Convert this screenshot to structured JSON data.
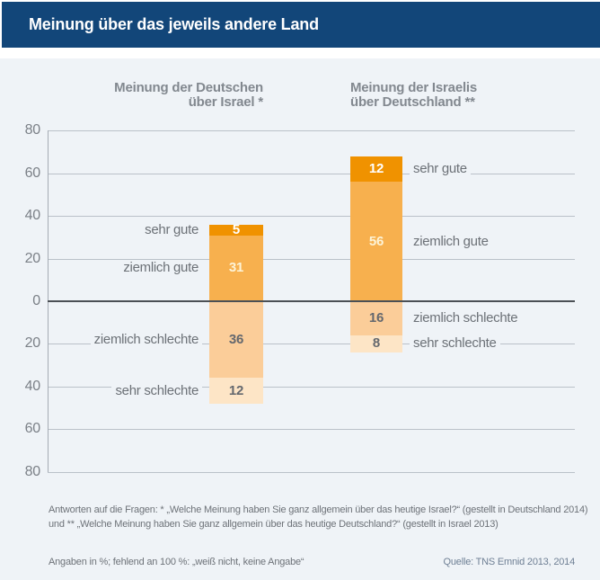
{
  "header": {
    "title": "Meinung über das jeweils andere Land"
  },
  "chart_data": {
    "type": "bar",
    "variant": "diverging-stacked",
    "unit": "%",
    "ylim": [
      -80,
      80
    ],
    "ytick_step": 20,
    "ytick_labels": [
      "80",
      "60",
      "40",
      "20",
      "0",
      "20",
      "40",
      "60",
      "80"
    ],
    "grid": true,
    "categories": [
      "sehr gute",
      "ziemlich gute",
      "ziemlich schlechte",
      "sehr schlechte"
    ],
    "groups": [
      {
        "id": "deutsche-ueber-israel",
        "title_lines": [
          "Meinung der Deutschen",
          "über Israel *"
        ],
        "label_side": "left",
        "segments": [
          {
            "label": "sehr gute",
            "value": 5,
            "sign": "positive"
          },
          {
            "label": "ziemlich gute",
            "value": 31,
            "sign": "positive"
          },
          {
            "label": "ziemlich schlechte",
            "value": 36,
            "sign": "negative"
          },
          {
            "label": "sehr schlechte",
            "value": 12,
            "sign": "negative"
          }
        ]
      },
      {
        "id": "israelis-ueber-deutschland",
        "title_lines": [
          "Meinung der Israelis",
          "über Deutschland **"
        ],
        "label_side": "right",
        "segments": [
          {
            "label": "sehr gute",
            "value": 12,
            "sign": "positive"
          },
          {
            "label": "ziemlich gute",
            "value": 56,
            "sign": "positive"
          },
          {
            "label": "ziemlich schlechte",
            "value": 16,
            "sign": "negative"
          },
          {
            "label": "sehr schlechte",
            "value": 8,
            "sign": "negative"
          }
        ]
      }
    ],
    "palette": {
      "sehr gute": {
        "fill": "#f09200",
        "value_color": "#ffffff"
      },
      "ziemlich gute": {
        "fill": "#f7b04e",
        "value_color": "#fdf3d6"
      },
      "ziemlich schlechte": {
        "fill": "#fbcd99",
        "value_color": "#64686e"
      },
      "sehr schlechte": {
        "fill": "#fde5c6",
        "value_color": "#64686e"
      }
    },
    "colors": {
      "header_bg": "#124679",
      "content_bg": "#eff3f7",
      "gridline": "#bac1c9",
      "zero_line": "#4b5055",
      "axis_line": "#a6acb4",
      "tick_text": "#7b8087",
      "label_text": "#6c7177",
      "group_title_text": "#82888f"
    }
  },
  "footnotes": {
    "line1": "Antworten auf die Fragen: * „Welche Meinung haben Sie ganz allgemein über das heutige Israel?“ (gestellt in Deutschland 2014)",
    "line2": "und ** „Welche Meinung haben Sie ganz allgemein über das heutige Deutschland?“ (gestellt in Israel 2013)",
    "angaben": "Angaben in %; fehlend an 100 %: „weiß nicht, keine Angabe“",
    "quelle": "Quelle: TNS Emnid 2013, 2014"
  }
}
